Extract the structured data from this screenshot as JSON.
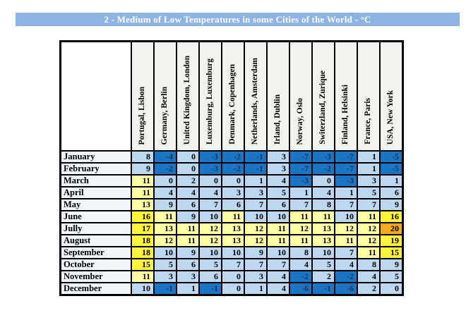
{
  "header": {
    "title": "2 - Medium of Low Temperatures in some Cities of the World - °C"
  },
  "colors": {
    "title_bar_bg": "#8DB4E2",
    "title_text": "#FFFFFF",
    "header_cell_bg": "#F2F2EE",
    "month_cell_bg": "#F1F4F8",
    "border": "#000000",
    "negative_text": "#17375D",
    "positive_text": "#000000",
    "bins": [
      {
        "label": "below 0",
        "color": "#1C75C4"
      },
      {
        "label": "0 to 10",
        "color": "#BDD7EE"
      },
      {
        "label": "11 to 13",
        "color": "#FFFFA3"
      },
      {
        "label": "14 to 19",
        "color": "#FFF23B"
      },
      {
        "label": "20 and over",
        "color": "#F6A81F"
      }
    ]
  },
  "chart_data": {
    "type": "heatmap",
    "title": "2 - Medium of Low Temperatures in some Cities of the World - °C",
    "unit": "°C",
    "columns": [
      "Portugal, Lisbon",
      "Germany, Berlin",
      "United Kingdom, London",
      "Luxemburg, Luxemburg",
      "Denmark, Copenhagen",
      "Netherlands, Amsterdam",
      "Irland, Dublin",
      "Norway, Oslo",
      "Switerzland, Zurique",
      "Finland, Helsinki",
      "France, Paris",
      "USA, New York"
    ],
    "row_labels": [
      "January",
      "February",
      "March",
      "April",
      "May",
      "June",
      "Jully",
      "August",
      "September",
      "October",
      "November",
      "December"
    ],
    "values": [
      [
        8,
        -4,
        0,
        -3,
        -2,
        -1,
        3,
        -7,
        -3,
        -7,
        1,
        -5
      ],
      [
        9,
        -2,
        0,
        -3,
        -2,
        -1,
        3,
        -7,
        -2,
        -7,
        1,
        -5
      ],
      [
        11,
        0,
        2,
        0,
        0,
        1,
        4,
        -3,
        0,
        -3,
        3,
        1
      ],
      [
        11,
        4,
        4,
        4,
        3,
        3,
        5,
        1,
        4,
        1,
        5,
        6
      ],
      [
        13,
        9,
        6,
        7,
        6,
        7,
        6,
        7,
        8,
        7,
        7,
        9
      ],
      [
        16,
        11,
        9,
        10,
        11,
        10,
        10,
        11,
        11,
        10,
        11,
        16
      ],
      [
        17,
        13,
        11,
        12,
        13,
        12,
        11,
        12,
        13,
        12,
        12,
        20
      ],
      [
        18,
        12,
        11,
        12,
        13,
        12,
        11,
        11,
        13,
        11,
        12,
        19
      ],
      [
        18,
        10,
        9,
        10,
        10,
        9,
        10,
        8,
        10,
        7,
        11,
        15
      ],
      [
        15,
        5,
        6,
        5,
        7,
        7,
        7,
        4,
        5,
        4,
        8,
        9
      ],
      [
        11,
        3,
        3,
        6,
        0,
        3,
        4,
        -2,
        2,
        -2,
        4,
        5
      ],
      [
        10,
        -1,
        1,
        -1,
        0,
        1,
        4,
        -6,
        -1,
        -6,
        2,
        0
      ]
    ]
  }
}
